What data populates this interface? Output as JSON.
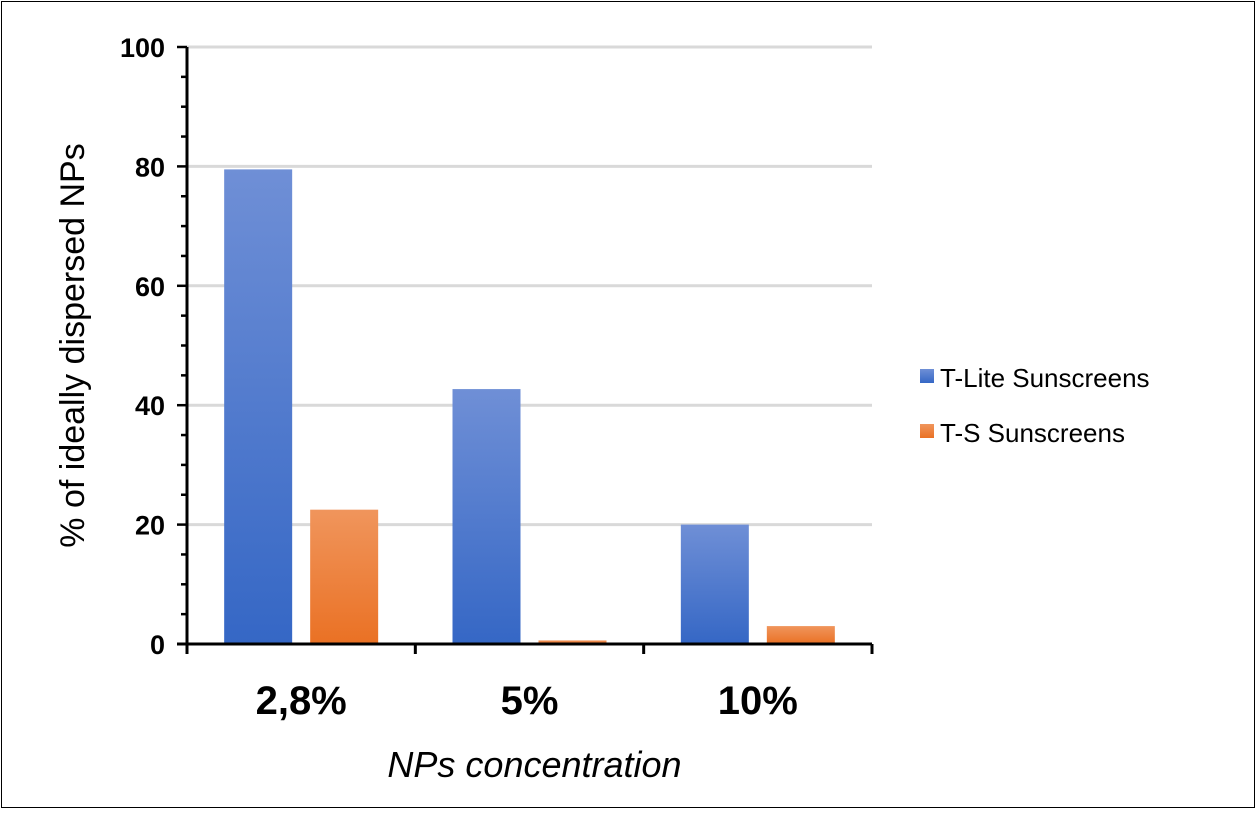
{
  "chart_data": {
    "type": "bar",
    "categories": [
      "2,8%",
      "5%",
      "10%"
    ],
    "series": [
      {
        "name": "T-Lite Sunscreens",
        "values": [
          79.5,
          42.7,
          20.0
        ]
      },
      {
        "name": "T-S Sunscreens",
        "values": [
          22.5,
          0.6,
          3.0
        ]
      }
    ],
    "xlabel": "NPs concentration",
    "ylabel": "% of ideally dispersed NPs",
    "ylim": [
      0,
      100
    ],
    "yticks": [
      0,
      20,
      40,
      60,
      80,
      100
    ],
    "grid": true,
    "legend_position": "right",
    "colors": {
      "T-Lite Sunscreens": {
        "top": "#6f8fd6",
        "bottom": "#3567c5"
      },
      "T-S Sunscreens": {
        "top": "#f0955c",
        "bottom": "#ea7124"
      }
    }
  }
}
